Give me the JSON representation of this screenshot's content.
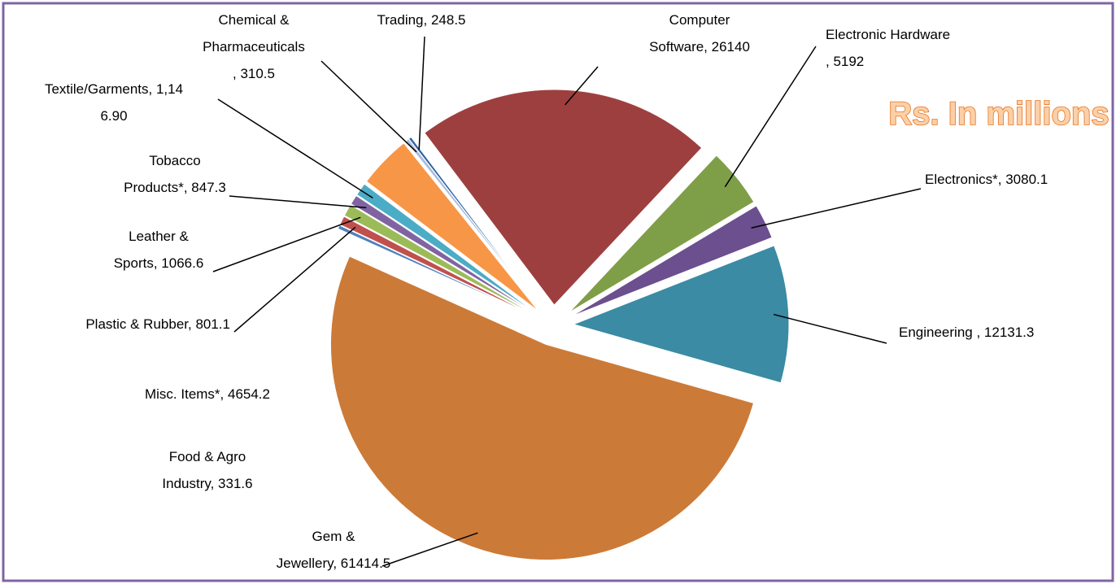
{
  "chart_data": {
    "type": "pie",
    "title": "Rs. In millions",
    "values": [
      26140,
      5192,
      3080.1,
      12131.3,
      61414.5,
      331.6,
      801.1,
      1066.6,
      847.3,
      1146.9,
      4654.2,
      310.5,
      248.5
    ],
    "value_labels": [
      "Computer\nSoftware, 26140",
      "Electronic Hardware\n, 5192",
      "Electronics*, 3080.1",
      "Engineering , 12131.3",
      "Gem &\nJewellery, 61414.5",
      "Food & Agro\nIndustry, 331.6",
      "Plastic & Rubber, 801.1",
      "Leather &\nSports, 1066.6",
      "Tobacco\nProducts*, 847.3",
      "Textile/Garments, 1,14\n6.90",
      "Misc. Items*, 4654.2",
      "Chemical &\nPharmaceuticals\n, 310.5",
      "Trading, 248.5"
    ],
    "colors": [
      "#9e3f3f",
      "#7f9e48",
      "#6b4f8e",
      "#3a8ba3",
      "#cc7a38",
      "#4f81bd",
      "#c0504d",
      "#9bbb59",
      "#8064a2",
      "#4bacc6",
      "#f79646",
      "#a9bcdb",
      "#2f63a3"
    ]
  }
}
